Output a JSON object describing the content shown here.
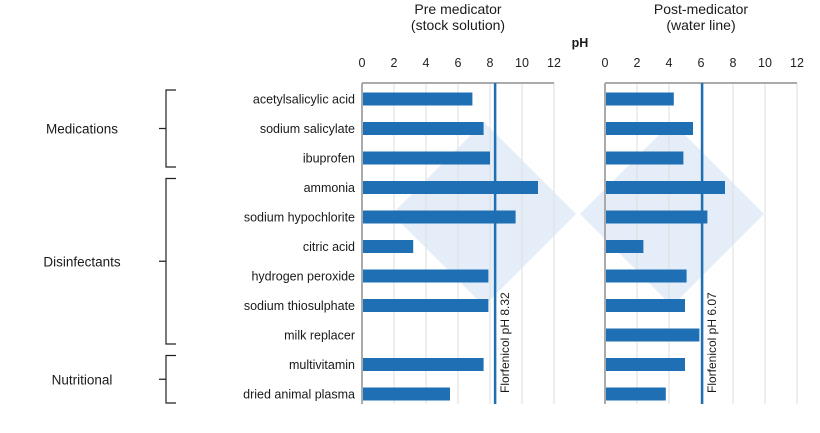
{
  "chart_data": [
    {
      "type": "bar",
      "orientation": "horizontal",
      "title": "Pre medicator (stock solution)",
      "title_lines": [
        "Pre medicator",
        "(stock solution)"
      ],
      "xlabel": "pH",
      "xlim": [
        0,
        12
      ],
      "xticks": [
        0,
        2,
        4,
        6,
        8,
        10,
        12
      ],
      "grid": true,
      "color": "#1f6fb5",
      "categories": [
        "acetylsalicylic acid",
        "sodium salicylate",
        "ibuprofen",
        "ammonia",
        "sodium hypochlorite",
        "citric acid",
        "hydrogen peroxide",
        "sodium thiosulphate",
        "milk replacer",
        "multivitamin",
        "dried animal plasma"
      ],
      "values": [
        6.9,
        7.6,
        8.0,
        11.0,
        9.6,
        3.2,
        7.9,
        7.9,
        null,
        7.6,
        5.5
      ],
      "reference_line": {
        "value": 8.32,
        "label": "Florfenicol pH 8.32"
      }
    },
    {
      "type": "bar",
      "orientation": "horizontal",
      "title": "Post-medicator (water line)",
      "title_lines": [
        "Post-medicator",
        "(water line)"
      ],
      "xlim": [
        0,
        12
      ],
      "xticks": [
        0,
        2,
        4,
        6,
        8,
        10,
        12
      ],
      "grid": true,
      "color": "#1f6fb5",
      "categories": [
        "acetylsalicylic acid",
        "sodium salicylate",
        "ibuprofen",
        "ammonia",
        "sodium hypochlorite",
        "citric acid",
        "hydrogen peroxide",
        "sodium thiosulphate",
        "milk replacer",
        "multivitamin",
        "dried animal plasma"
      ],
      "values": [
        4.3,
        5.5,
        4.9,
        7.5,
        6.4,
        2.4,
        5.1,
        5.0,
        5.9,
        5.0,
        3.8
      ],
      "reference_line": {
        "value": 6.07,
        "label": "Florfenicol pH 6.07"
      }
    }
  ],
  "groups": [
    {
      "label": "Medications",
      "start": 0,
      "end": 2
    },
    {
      "label": "Disinfectants",
      "start": 3,
      "end": 8
    },
    {
      "label": "Nutritional",
      "start": 9,
      "end": 10
    }
  ],
  "watermark_color": "#dce8f5"
}
